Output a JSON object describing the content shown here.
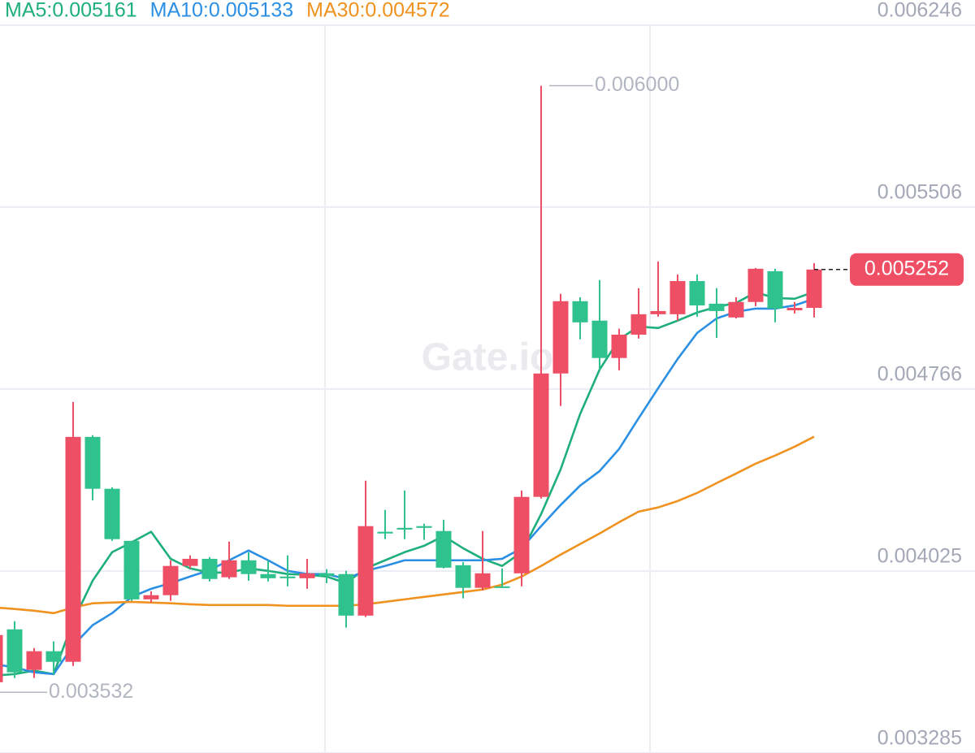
{
  "chart_data": {
    "type": "candlestick",
    "watermark": "Gate.io",
    "up_color": "#ef4f65",
    "down_color": "#2fc28c",
    "ylim": [
      0.003285,
      0.006246
    ],
    "yticks": [
      0.003285,
      0.004025,
      0.004766,
      0.005506,
      0.006246
    ],
    "grid": true,
    "open": [
      0.003573,
      0.003788,
      0.003623,
      0.003699,
      0.003656,
      0.004571,
      0.00436,
      0.004148,
      0.00391,
      0.003927,
      0.004046,
      0.004075,
      0.004,
      0.004069,
      0.004013,
      0.004003,
      0.003996,
      0.004016,
      0.004013,
      0.003844,
      0.004185,
      0.004201,
      0.004208,
      0.004188,
      0.004049,
      0.003957,
      0.003963,
      0.004016,
      0.004327,
      0.004829,
      0.005123,
      0.005044,
      0.004892,
      0.004987,
      0.00507,
      0.00507,
      0.005205,
      0.005113,
      0.005057,
      0.00512,
      0.005245,
      0.005086,
      0.005096
    ],
    "high": [
      0.003788,
      0.003821,
      0.003712,
      0.003739,
      0.004713,
      0.004578,
      0.004366,
      0.004148,
      0.003943,
      0.004069,
      0.004089,
      0.004082,
      0.004145,
      0.004102,
      0.004069,
      0.004089,
      0.004075,
      0.004033,
      0.004026,
      0.004393,
      0.004274,
      0.004353,
      0.004218,
      0.004234,
      0.004062,
      0.004188,
      0.004036,
      0.004353,
      0.006,
      0.005153,
      0.005139,
      0.005209,
      0.005011,
      0.005176,
      0.005285,
      0.005232,
      0.005232,
      0.005176,
      0.005139,
      0.005258,
      0.005255,
      0.00512,
      0.005278
    ],
    "low": [
      0.003532,
      0.00359,
      0.00359,
      0.003606,
      0.003639,
      0.004313,
      0.004148,
      0.003904,
      0.003897,
      0.003904,
      0.004036,
      0.003983,
      0.003993,
      0.003986,
      0.003983,
      0.003963,
      0.003953,
      0.003976,
      0.003795,
      0.003838,
      0.004155,
      0.004155,
      0.004152,
      0.004036,
      0.003914,
      0.003947,
      0.003957,
      0.003963,
      0.00432,
      0.004697,
      0.004968,
      0.004845,
      0.004842,
      0.004971,
      0.00506,
      0.005044,
      0.00506,
      0.004974,
      0.005053,
      0.005103,
      0.005037,
      0.005073,
      0.005057
    ],
    "close": [
      0.003765,
      0.003613,
      0.003699,
      0.003656,
      0.004571,
      0.00436,
      0.004155,
      0.00391,
      0.003927,
      0.004046,
      0.004075,
      0.003993,
      0.004069,
      0.004013,
      0.003996,
      0.003996,
      0.004016,
      0.004006,
      0.003844,
      0.004208,
      0.004178,
      0.004194,
      0.004201,
      0.004039,
      0.003957,
      0.004016,
      0.00396,
      0.004327,
      0.004829,
      0.005123,
      0.005037,
      0.004892,
      0.004987,
      0.00507,
      0.005083,
      0.005205,
      0.005106,
      0.005083,
      0.00512,
      0.005255,
      0.005093,
      0.005096,
      0.005252
    ],
    "series": [
      {
        "name": "MA5:0.005161",
        "color": "#1faf7b",
        "values": [
          0.0036,
          0.003606,
          0.00362,
          0.003606,
          0.003821,
          0.003986,
          0.004102,
          0.004142,
          0.004185,
          0.004075,
          0.004036,
          0.004019,
          0.004019,
          0.004036,
          0.004026,
          0.004013,
          0.00401,
          0.004003,
          0.003976,
          0.004036,
          0.004069,
          0.004102,
          0.004128,
          0.004168,
          0.004118,
          0.004075,
          0.004046,
          0.004102,
          0.004257,
          0.004439,
          0.004664,
          0.004845,
          0.004968,
          0.00502,
          0.005014,
          0.005044,
          0.005077,
          0.0051,
          0.005116,
          0.005159,
          0.005136,
          0.005133,
          0.005161
        ]
      },
      {
        "name": "MA10:0.005133",
        "color": "#2b8fe3",
        "values": [
          0.003646,
          0.003633,
          0.003613,
          0.003606,
          0.003722,
          0.003805,
          0.003854,
          0.00392,
          0.003953,
          0.003976,
          0.004003,
          0.004029,
          0.004069,
          0.004109,
          0.004069,
          0.004026,
          0.004013,
          0.004013,
          0.003993,
          0.004026,
          0.004046,
          0.004069,
          0.004069,
          0.004069,
          0.004069,
          0.004069,
          0.004075,
          0.004118,
          0.004208,
          0.004294,
          0.004373,
          0.004432,
          0.004522,
          0.004647,
          0.004769,
          0.004888,
          0.004994,
          0.005053,
          0.00508,
          0.005093,
          0.005093,
          0.005106,
          0.005133
        ]
      },
      {
        "name": "MA30:0.004572",
        "color": "#f0921f",
        "values": [
          0.003877,
          0.003871,
          0.003864,
          0.003854,
          0.003877,
          0.003894,
          0.003897,
          0.0039,
          0.003897,
          0.003894,
          0.00389,
          0.003887,
          0.003887,
          0.003887,
          0.003887,
          0.003884,
          0.003884,
          0.003884,
          0.003884,
          0.00389,
          0.0039,
          0.00391,
          0.00392,
          0.00393,
          0.00394,
          0.00395,
          0.00397,
          0.004003,
          0.004046,
          0.004092,
          0.004135,
          0.004178,
          0.004224,
          0.004267,
          0.004284,
          0.00431,
          0.004343,
          0.004383,
          0.004422,
          0.004462,
          0.004495,
          0.004531,
          0.004572
        ]
      }
    ],
    "high_annotation": {
      "value": 0.006,
      "label": "0.006000"
    },
    "low_annotation": 0.003532,
    "last_price": 0.005252
  }
}
